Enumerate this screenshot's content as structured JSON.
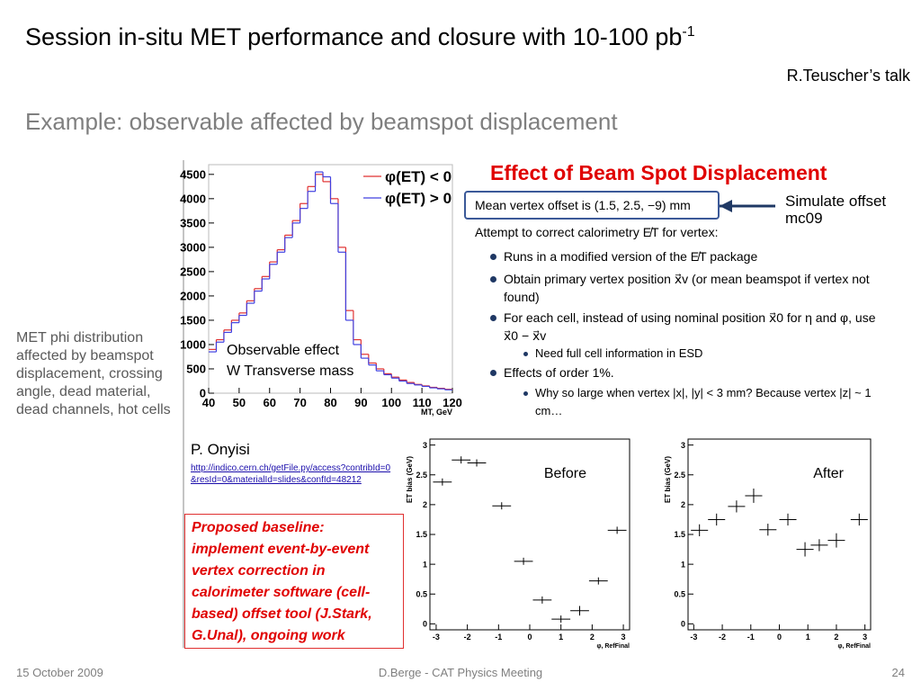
{
  "title": "Session in-situ MET performance and closure with 10-100 pb",
  "title_sup": "-1",
  "talk": "R.Teuscher’s talk",
  "heading": "Example: observable affected by beamspot displacement",
  "side_text": "MET phi distribution affected by beamspot displacement, crossing angle, dead material, dead channels, hot cells",
  "panel": {
    "title": "Effect of Beam Spot Displacement",
    "box": "Mean vertex offset is (1.5, 2.5, −9) mm",
    "arrow_note": "Simulate offset mc09",
    "intro": "Attempt to correct calorimetry E̸T for vertex:",
    "bullets": [
      {
        "level": 1,
        "text": "Runs in a modified version of the E̸T package"
      },
      {
        "level": 1,
        "text": "Obtain primary vertex position x⃗v (or mean beamspot if vertex not found)"
      },
      {
        "level": 1,
        "text": "For each cell, instead of using nominal position x⃗0 for η and φ, use x⃗0 − x⃗v"
      },
      {
        "level": 2,
        "text": "Need full cell information in ESD"
      },
      {
        "level": 1,
        "text": "Effects of order 1%."
      },
      {
        "level": 2,
        "text": "Why so large when vertex |x|, |y| < 3 mm? Because vertex |z| ~ 1 cm…"
      }
    ]
  },
  "author": "P. Onyisi",
  "link": "http://indico.cern.ch/getFile.py/access?contribId=0&resId=0&materialId=slides&confId=48212",
  "proposal": "Proposed baseline: implement event-by-event vertex correction in calorimeter software (cell-based) offset tool (J.Stark, G.Unal), ongoing work",
  "footer": {
    "date": "15 October 2009",
    "center": "D.Berge - CAT Physics Meeting",
    "page": "24"
  },
  "chart_data": [
    {
      "type": "histogram",
      "xlabel": "MT, GeV",
      "annotations": [
        "Observable effect",
        "W Transverse mass"
      ],
      "bins": [
        40,
        42.5,
        45,
        47.5,
        50,
        52.5,
        55,
        57.5,
        60,
        62.5,
        65,
        67.5,
        70,
        72.5,
        75,
        77.5,
        80,
        82.5,
        85,
        87.5,
        90,
        92.5,
        95,
        97.5,
        100,
        102.5,
        105,
        107.5,
        110,
        112.5,
        115,
        117.5,
        120
      ],
      "series": [
        {
          "name": "φ(ET) < 0",
          "color": "#e03030",
          "values": [
            900,
            1100,
            1300,
            1500,
            1650,
            1900,
            2150,
            2400,
            2700,
            2950,
            3250,
            3550,
            3900,
            4250,
            4500,
            4350,
            4000,
            3000,
            1700,
            1100,
            800,
            620,
            500,
            400,
            330,
            270,
            220,
            180,
            150,
            120,
            100,
            80
          ]
        },
        {
          "name": "φ(ET) > 0",
          "color": "#4040e0",
          "values": [
            850,
            1050,
            1250,
            1450,
            1600,
            1850,
            2100,
            2350,
            2650,
            2900,
            3200,
            3500,
            3800,
            4150,
            4550,
            4450,
            3900,
            2900,
            1500,
            1000,
            720,
            580,
            460,
            380,
            310,
            250,
            200,
            170,
            140,
            110,
            90,
            70
          ]
        }
      ],
      "xlim": [
        40,
        120
      ],
      "ylim": [
        0,
        4700
      ],
      "xticks": [
        40,
        50,
        60,
        70,
        80,
        90,
        100,
        110,
        120
      ],
      "yticks": [
        0,
        500,
        1000,
        1500,
        2000,
        2500,
        3000,
        3500,
        4000,
        4500
      ]
    },
    {
      "type": "scatter",
      "label": "Before",
      "ylabel": "ET bias (GeV)",
      "xlabel": "φ, RefFinal",
      "x": [
        -2.8,
        -2.2,
        -1.7,
        -0.9,
        -0.2,
        0.4,
        1.0,
        1.6,
        2.2,
        2.8
      ],
      "values": [
        2.38,
        2.75,
        2.7,
        1.98,
        1.05,
        0.4,
        0.08,
        0.22,
        0.72,
        1.57
      ],
      "xerr": [
        0.3,
        0.3,
        0.3,
        0.3,
        0.3,
        0.3,
        0.3,
        0.3,
        0.3,
        0.3
      ],
      "yerr": [
        0.06,
        0.06,
        0.06,
        0.06,
        0.06,
        0.06,
        0.06,
        0.08,
        0.06,
        0.06
      ],
      "xlim": [
        -3.2,
        3.2
      ],
      "ylim": [
        -0.1,
        3.1
      ],
      "xticks": [
        -3,
        -2,
        -1,
        0,
        1,
        2,
        3
      ],
      "yticks": [
        0,
        0.5,
        1,
        1.5,
        2,
        2.5,
        3
      ]
    },
    {
      "type": "scatter",
      "label": "After",
      "ylabel": "ET bias (GeV)",
      "xlabel": "φ, RefFinal",
      "x": [
        -2.8,
        -2.2,
        -1.5,
        -0.9,
        -0.4,
        0.3,
        0.9,
        1.4,
        2.0,
        2.8
      ],
      "values": [
        1.57,
        1.75,
        1.97,
        2.15,
        1.58,
        1.75,
        1.25,
        1.32,
        1.4,
        1.75
      ],
      "xerr": [
        0.3,
        0.3,
        0.3,
        0.3,
        0.3,
        0.3,
        0.3,
        0.3,
        0.3,
        0.3
      ],
      "yerr": [
        0.1,
        0.1,
        0.1,
        0.12,
        0.1,
        0.1,
        0.12,
        0.1,
        0.12,
        0.1
      ],
      "xlim": [
        -3.2,
        3.2
      ],
      "ylim": [
        -0.1,
        3.1
      ],
      "xticks": [
        -3,
        -2,
        -1,
        0,
        1,
        2,
        3
      ],
      "yticks": [
        0,
        0.5,
        1,
        1.5,
        2,
        2.5,
        3
      ]
    }
  ]
}
